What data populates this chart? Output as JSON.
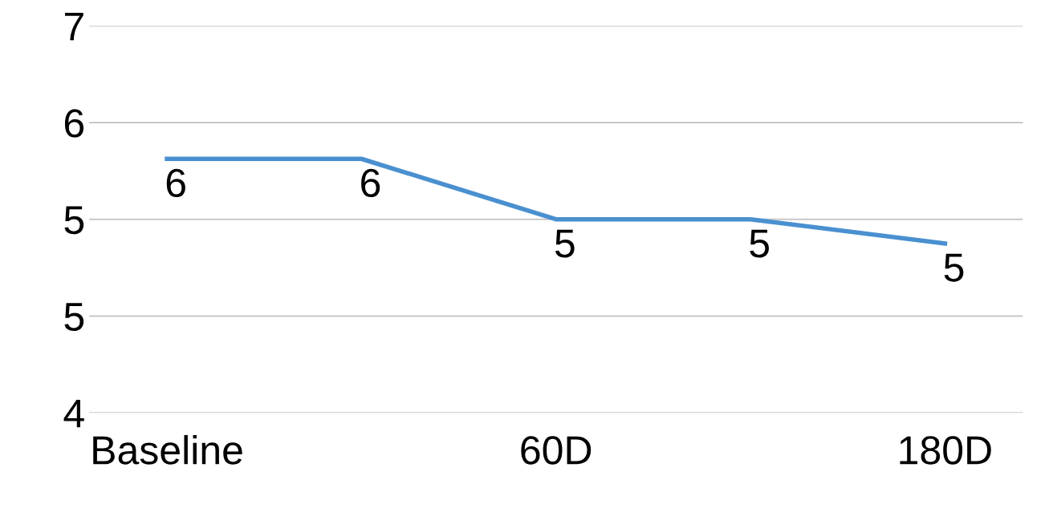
{
  "chart_data": {
    "type": "line",
    "categories": [
      "Baseline",
      null,
      "60D",
      null,
      "180D"
    ],
    "series": [
      {
        "color": "#4a90d0",
        "values": [
          5.9,
          5.9,
          5.4,
          5.4,
          5.2
        ],
        "value_labels": [
          "6",
          "6",
          "5",
          "5",
          "5"
        ]
      }
    ],
    "ylim": [
      3.8,
      7.0
    ],
    "yticks": [
      {
        "value": 3.8,
        "label": "4"
      },
      {
        "value": 4.6,
        "label": "5"
      },
      {
        "value": 5.4,
        "label": "5"
      },
      {
        "value": 6.2,
        "label": "6"
      },
      {
        "value": 7.0,
        "label": "7"
      }
    ],
    "grid": "y",
    "legend": false,
    "marker": "none",
    "line_style": "solid"
  }
}
